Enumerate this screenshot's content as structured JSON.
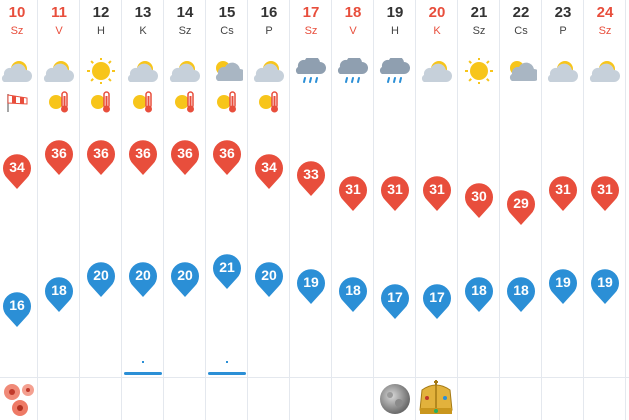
{
  "days": [
    {
      "date": "10",
      "dow": "Sz",
      "red": true,
      "weather": "sun-cloud-icon",
      "extra": "wind-flag-icon",
      "high": "34",
      "low": "16"
    },
    {
      "date": "11",
      "dow": "V",
      "red": true,
      "weather": "sun-cloud-icon",
      "extra": "heat-warning-icon",
      "high": "36",
      "low": "18"
    },
    {
      "date": "12",
      "dow": "H",
      "red": false,
      "weather": "sun-icon",
      "extra": "heat-warning-icon",
      "high": "36",
      "low": "20"
    },
    {
      "date": "13",
      "dow": "K",
      "red": false,
      "weather": "sun-cloud-icon",
      "extra": "heat-warning-icon",
      "high": "36",
      "low": "20",
      "bar": true
    },
    {
      "date": "14",
      "dow": "Sz",
      "red": false,
      "weather": "sun-cloud-icon",
      "extra": "heat-warning-icon",
      "high": "36",
      "low": "20"
    },
    {
      "date": "15",
      "dow": "Cs",
      "red": false,
      "weather": "partly-cloudy-icon",
      "extra": "heat-warning-icon",
      "high": "36",
      "low": "21",
      "bar": true
    },
    {
      "date": "16",
      "dow": "P",
      "red": false,
      "weather": "sun-cloud-icon",
      "extra": "heat-warning-icon",
      "high": "34",
      "low": "20"
    },
    {
      "date": "17",
      "dow": "Sz",
      "red": true,
      "weather": "rain-cloud-icon",
      "extra": "",
      "high": "33",
      "low": "19"
    },
    {
      "date": "18",
      "dow": "V",
      "red": true,
      "weather": "rain-cloud-icon",
      "extra": "",
      "high": "31",
      "low": "18"
    },
    {
      "date": "19",
      "dow": "H",
      "red": false,
      "weather": "rain-cloud-icon",
      "extra": "",
      "high": "31",
      "low": "17"
    },
    {
      "date": "20",
      "dow": "K",
      "red": true,
      "weather": "sun-cloud-icon",
      "extra": "",
      "high": "31",
      "low": "17"
    },
    {
      "date": "21",
      "dow": "Sz",
      "red": false,
      "weather": "sun-icon",
      "extra": "",
      "high": "30",
      "low": "18"
    },
    {
      "date": "22",
      "dow": "Cs",
      "red": false,
      "weather": "partly-cloudy-icon",
      "extra": "",
      "high": "29",
      "low": "18"
    },
    {
      "date": "23",
      "dow": "P",
      "red": false,
      "weather": "sun-cloud-icon",
      "extra": "",
      "high": "31",
      "low": "19"
    },
    {
      "date": "24",
      "dow": "Sz",
      "red": true,
      "weather": "sun-cloud-icon",
      "extra": "",
      "high": "31",
      "low": "19"
    }
  ],
  "colors": {
    "high": "#e84e3c",
    "low": "#2b8fd6",
    "sun": "#f7c51b",
    "cloud": "#b9c4cf"
  },
  "bottom_icons": [
    "flower-icon",
    "full-moon-icon",
    "holy-crown-icon"
  ]
}
